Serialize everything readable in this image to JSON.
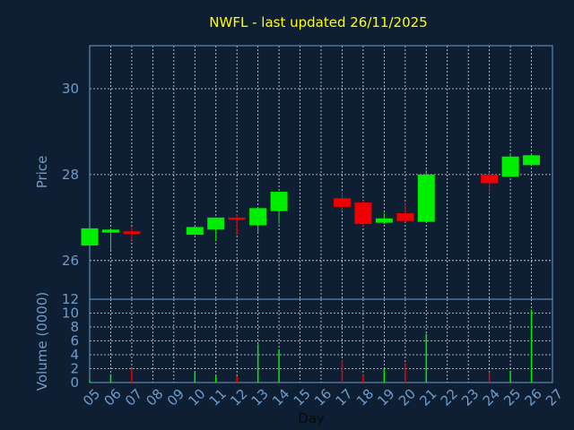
{
  "chart_data": [
    {
      "type": "candlestick",
      "title": "NWFL - last updated 26/11/2025",
      "ylabel": "Price",
      "ylim": [
        25.1,
        31.0
      ],
      "yticks": [
        26,
        28,
        30
      ],
      "x_ticks": [
        "05",
        "06",
        "07",
        "08",
        "09",
        "10",
        "11",
        "12",
        "13",
        "14",
        "15",
        "16",
        "17",
        "18",
        "19",
        "20",
        "21",
        "22",
        "23",
        "24",
        "25",
        "26",
        "27"
      ],
      "colors": {
        "up": "#00ee00",
        "down": "#ee0000",
        "grid": "#ffffff",
        "axis": "#6e9ccb",
        "title": "#ffff00"
      },
      "candles": [
        {
          "day": "05",
          "open": 26.35,
          "high": 26.75,
          "low": 26.35,
          "close": 26.75
        },
        {
          "day": "06",
          "open": 26.65,
          "high": 26.75,
          "low": 26.25,
          "close": 26.72
        },
        {
          "day": "07",
          "open": 26.68,
          "high": 26.78,
          "low": 26.48,
          "close": 26.62
        },
        {
          "day": "10",
          "open": 26.6,
          "high": 26.8,
          "low": 26.6,
          "close": 26.78
        },
        {
          "day": "11",
          "open": 26.72,
          "high": 27.0,
          "low": 26.45,
          "close": 27.0
        },
        {
          "day": "12",
          "open": 27.0,
          "high": 27.08,
          "low": 26.6,
          "close": 26.95
        },
        {
          "day": "13",
          "open": 26.82,
          "high": 27.22,
          "low": 26.65,
          "close": 27.22
        },
        {
          "day": "14",
          "open": 27.15,
          "high": 27.6,
          "low": 26.85,
          "close": 27.6
        },
        {
          "day": "17",
          "open": 27.45,
          "high": 27.6,
          "low": 27.15,
          "close": 27.25
        },
        {
          "day": "18",
          "open": 27.35,
          "high": 27.4,
          "low": 26.8,
          "close": 26.85
        },
        {
          "day": "19",
          "open": 26.88,
          "high": 27.1,
          "low": 26.85,
          "close": 26.98
        },
        {
          "day": "20",
          "open": 27.1,
          "high": 27.35,
          "low": 26.9,
          "close": 26.92
        },
        {
          "day": "21",
          "open": 26.9,
          "high": 28.1,
          "low": 26.9,
          "close": 28.0
        },
        {
          "day": "24",
          "open": 28.0,
          "high": 28.05,
          "low": 27.55,
          "close": 27.8
        },
        {
          "day": "25",
          "open": 27.95,
          "high": 28.5,
          "low": 27.95,
          "close": 28.42
        },
        {
          "day": "26",
          "open": 28.22,
          "high": 28.5,
          "low": 28.22,
          "close": 28.45
        }
      ]
    },
    {
      "type": "bar",
      "ylabel": "Volume (0000)",
      "xlabel": "Day",
      "ylim": [
        0,
        12
      ],
      "yticks": [
        0,
        2,
        4,
        6,
        8,
        10,
        12
      ],
      "x_ticks": [
        "05",
        "06",
        "07",
        "08",
        "09",
        "10",
        "11",
        "12",
        "13",
        "14",
        "15",
        "16",
        "17",
        "18",
        "19",
        "20",
        "21",
        "22",
        "23",
        "24",
        "25",
        "26",
        "27"
      ],
      "categories": [
        "05",
        "06",
        "07",
        "10",
        "11",
        "12",
        "13",
        "14",
        "17",
        "18",
        "19",
        "20",
        "21",
        "24",
        "25",
        "26"
      ],
      "values": [
        0.3,
        1.2,
        2.0,
        1.5,
        1.0,
        0.9,
        5.5,
        4.8,
        3.2,
        1.1,
        2.0,
        2.8,
        7.0,
        1.5,
        1.7,
        10.5
      ],
      "direction": [
        "up",
        "up",
        "down",
        "up",
        "up",
        "down",
        "up",
        "up",
        "down",
        "down",
        "up",
        "down",
        "up",
        "down",
        "up",
        "up"
      ]
    }
  ]
}
